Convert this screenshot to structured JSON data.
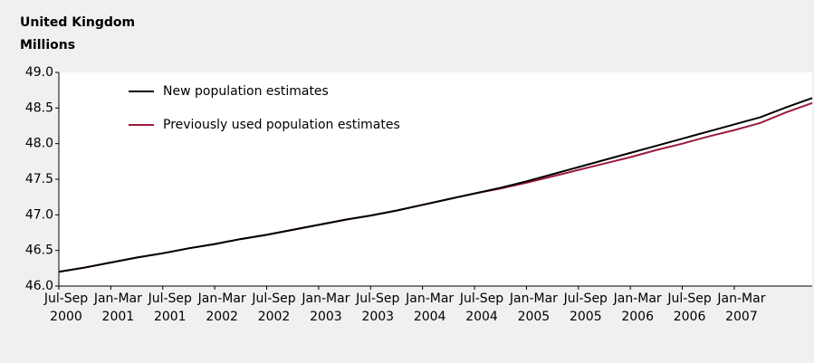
{
  "chart_data": {
    "type": "line",
    "title": "United Kingdom",
    "subtitle": "Millions",
    "categories": [
      "Jul-Sep 2000",
      null,
      "Jan-Mar 2001",
      null,
      "Jul-Sep 2001",
      null,
      "Jan-Mar 2002",
      null,
      "Jul-Sep 2002",
      null,
      "Jan-Mar 2003",
      null,
      "Jul-Sep 2003",
      null,
      "Jan-Mar 2004",
      null,
      "Jul-Sep 2004",
      null,
      "Jan-Mar 2005",
      null,
      "Jul-Sep 2005",
      null,
      "Jan-Mar 2006",
      null,
      "Jul-Sep 2006",
      null,
      "Jan-Mar 2007",
      null,
      null,
      null
    ],
    "series": [
      {
        "name": "New population estimates",
        "color": "#000000",
        "values": [
          46.2,
          46.26,
          46.33,
          46.4,
          46.46,
          46.53,
          46.59,
          46.66,
          46.72,
          46.79,
          46.86,
          46.93,
          46.99,
          47.06,
          47.14,
          47.22,
          47.3,
          47.38,
          47.47,
          47.57,
          47.67,
          47.77,
          47.87,
          47.97,
          48.07,
          48.17,
          48.27,
          48.37,
          48.51,
          48.64
        ]
      },
      {
        "name": "Previously used population estimates",
        "color": "#9b1c3b",
        "values": [
          46.2,
          46.26,
          46.33,
          46.4,
          46.46,
          46.53,
          46.59,
          46.66,
          46.72,
          46.79,
          46.86,
          46.93,
          46.99,
          47.06,
          47.14,
          47.22,
          47.3,
          47.37,
          47.45,
          47.54,
          47.63,
          47.72,
          47.81,
          47.91,
          48.0,
          48.1,
          48.19,
          48.29,
          48.44,
          48.57
        ]
      }
    ],
    "ylim": [
      46,
      49
    ],
    "yticks": [
      {
        "value": 46,
        "label": "46.0"
      },
      46.5,
      {
        "value": 47,
        "label": "47.0"
      },
      47.5,
      {
        "value": 48,
        "label": "48.0"
      },
      48.5,
      {
        "value": 49,
        "label": "49.0"
      }
    ],
    "grid": false,
    "legend": "upper left"
  }
}
